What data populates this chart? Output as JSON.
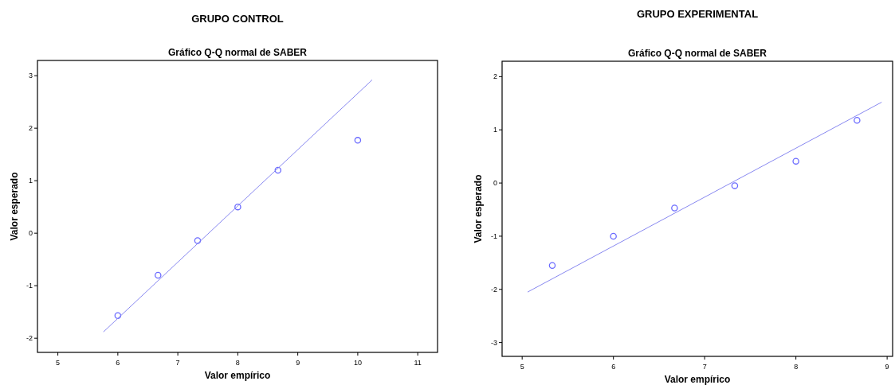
{
  "chart_data": [
    {
      "type": "scatter",
      "title": "GRUPO CONTROL",
      "subtitle": "Gráfico Q-Q normal de SABER",
      "xlabel": "Valor empírico",
      "ylabel": "Valor esperado",
      "xlim": [
        4.66,
        11.33
      ],
      "ylim": [
        -2.27,
        3.29
      ],
      "xticks": [
        5,
        6,
        7,
        8,
        9,
        10,
        11
      ],
      "yticks": [
        -2,
        -1,
        0,
        1,
        2,
        3
      ],
      "grid": false,
      "series": [
        {
          "color": "#6b6bff",
          "marker": "circle",
          "x": [
            6,
            6.67,
            7.33,
            8,
            8.67,
            10
          ],
          "values": [
            -1.57,
            -0.8,
            -0.14,
            0.5,
            1.2,
            1.77
          ]
        },
        {
          "type": "line",
          "color": "#8888f0",
          "line_style": "solid",
          "x": [
            5.76,
            10.24
          ],
          "values": [
            -1.88,
            2.92
          ]
        }
      ]
    },
    {
      "type": "scatter",
      "title": "GRUPO EXPERIMENTAL",
      "subtitle": "Gráfico Q-Q normal de SABER",
      "xlabel": "Valor empírico",
      "ylabel": "Valor esperado",
      "xlim": [
        4.78,
        9.06
      ],
      "ylim": [
        -3.26,
        2.29
      ],
      "xticks": [
        5,
        6,
        7,
        8,
        9
      ],
      "yticks": [
        -3,
        -2,
        -1,
        0,
        1,
        2
      ],
      "grid": false,
      "series": [
        {
          "color": "#6b6bff",
          "marker": "circle",
          "x": [
            5.33,
            6,
            6.67,
            7.33,
            8,
            8.67
          ],
          "values": [
            -1.55,
            -1.0,
            -0.47,
            -0.05,
            0.41,
            1.18
          ]
        },
        {
          "type": "line",
          "color": "#8888f0",
          "line_style": "solid",
          "x": [
            5.06,
            8.94
          ],
          "values": [
            -2.05,
            1.52
          ]
        }
      ]
    }
  ]
}
